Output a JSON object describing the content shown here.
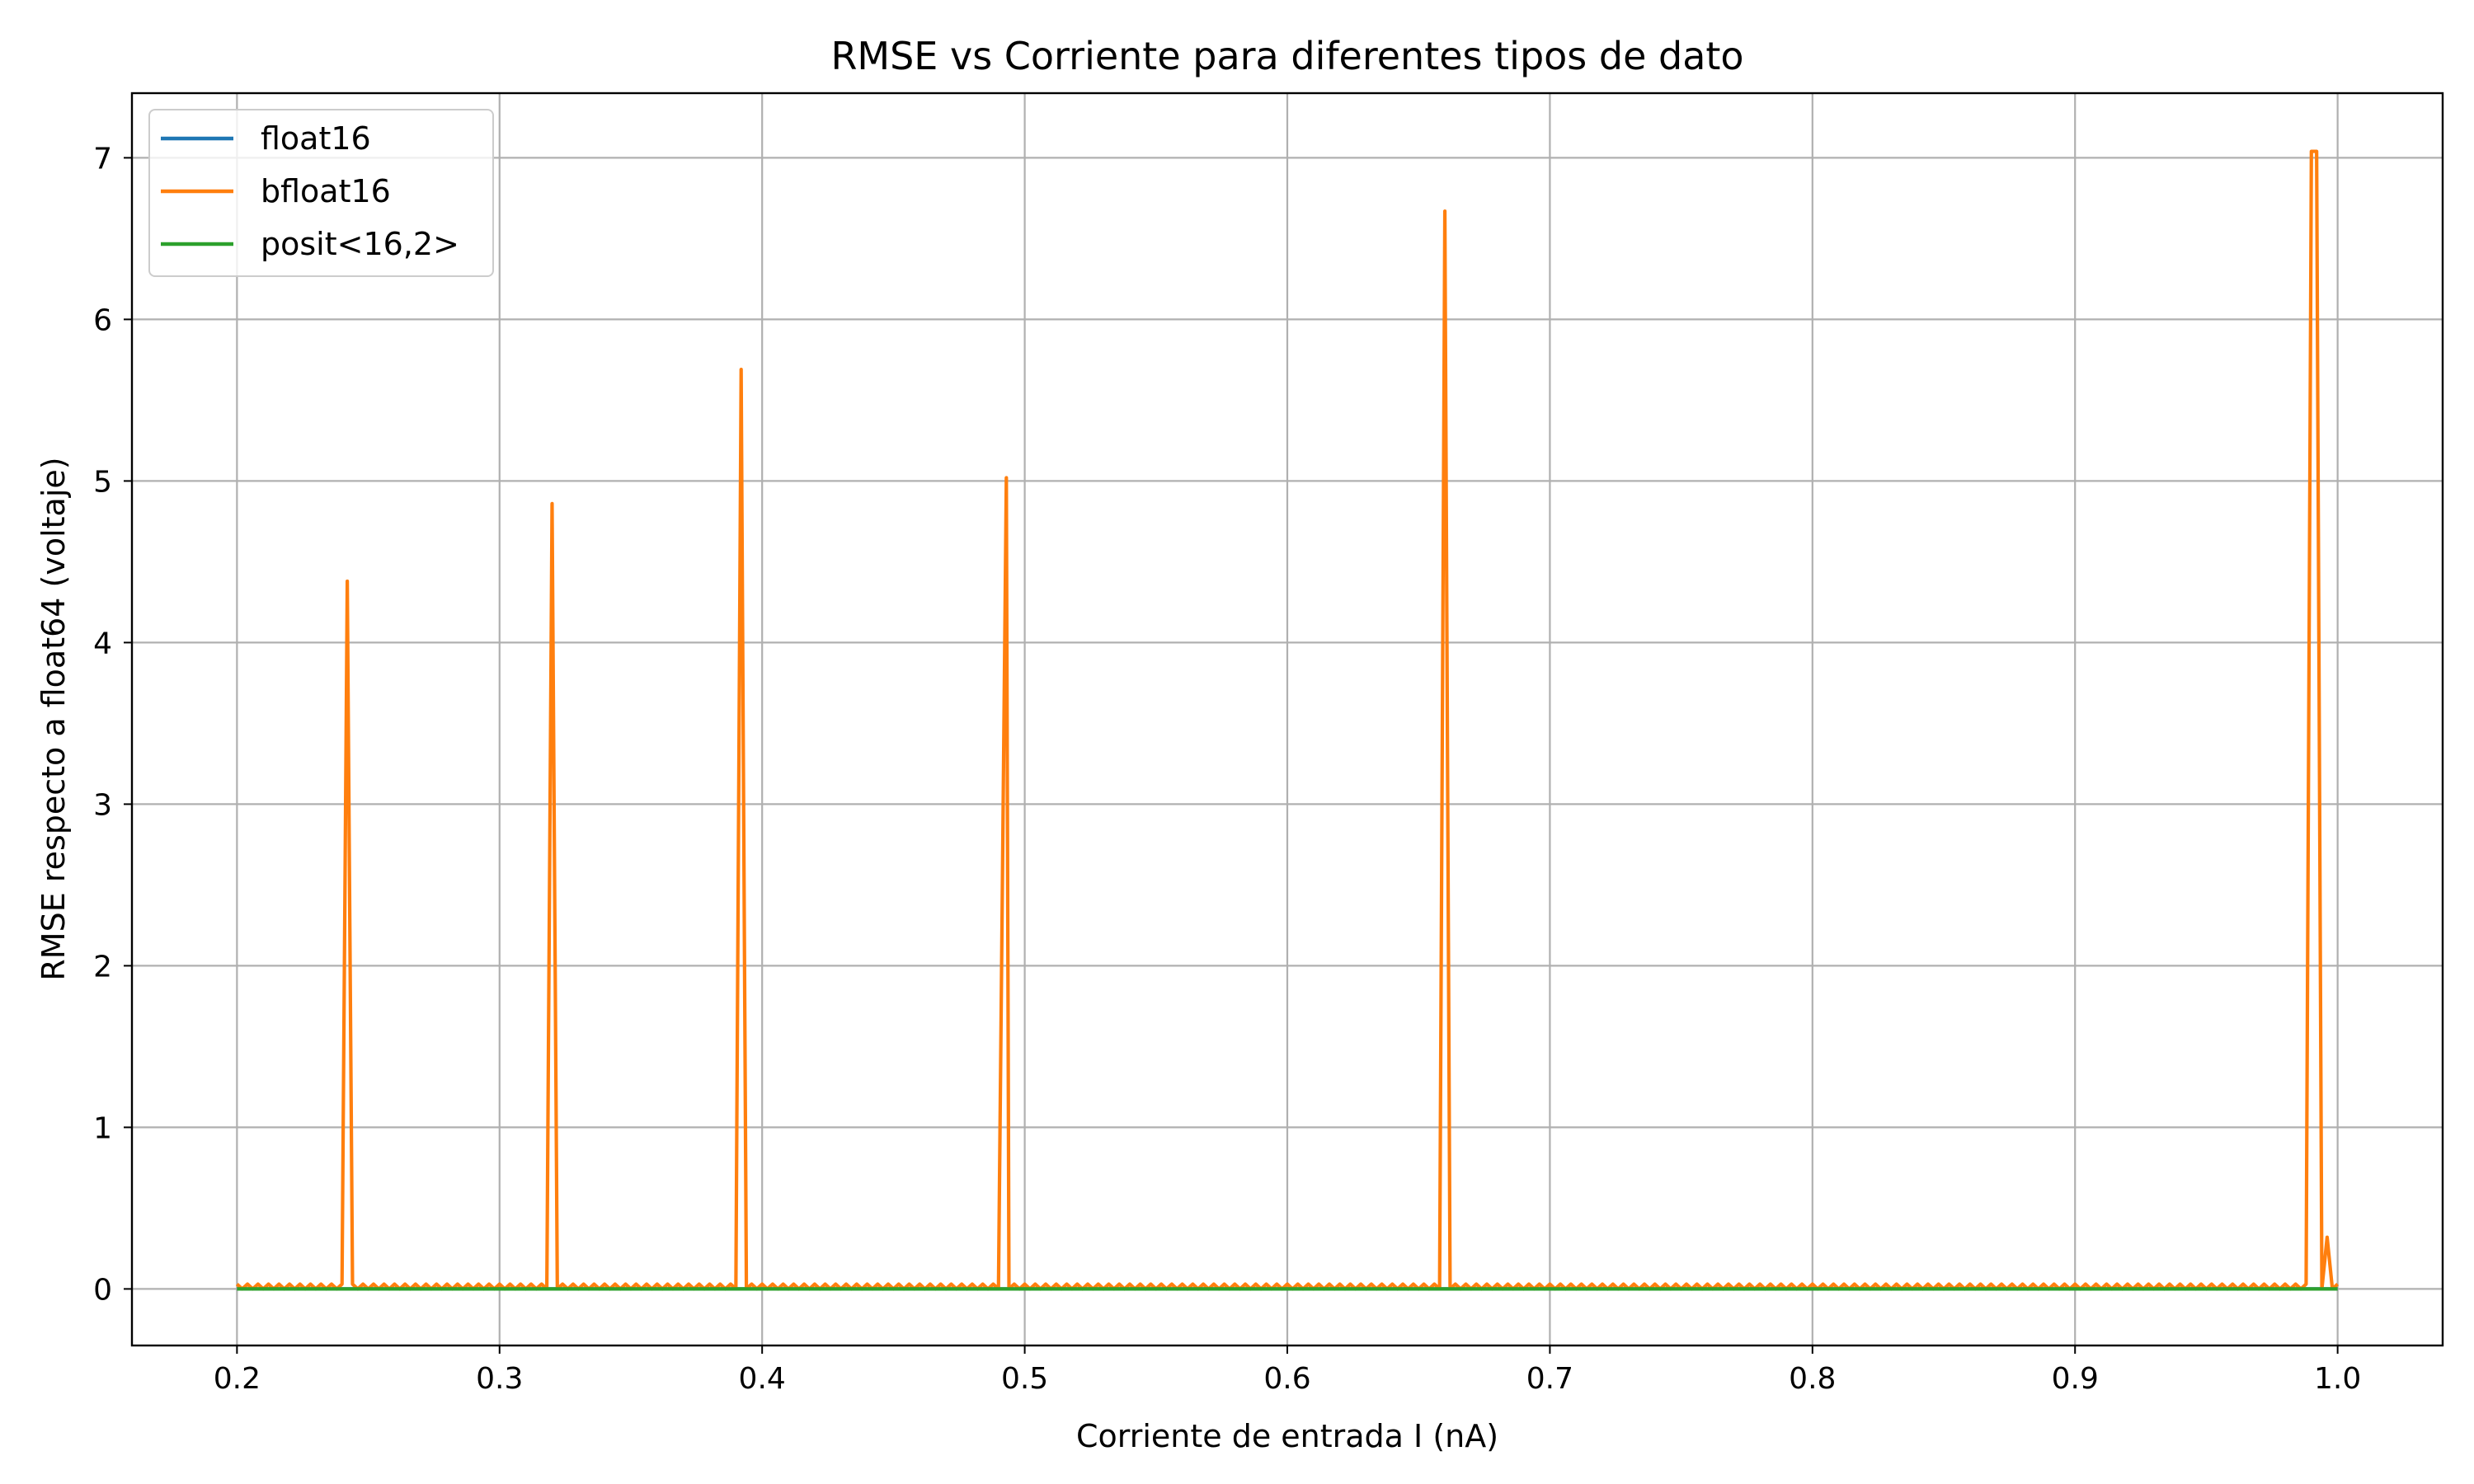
{
  "chart_data": {
    "type": "line",
    "title": "RMSE vs Corriente para diferentes tipos de dato",
    "xlabel": "Corriente de entrada I (nA)",
    "ylabel": "RMSE respecto a float64 (voltaje)",
    "xlim": [
      0.16,
      1.04
    ],
    "ylim": [
      -0.35,
      7.4
    ],
    "xticks": [
      0.2,
      0.3,
      0.4,
      0.5,
      0.6,
      0.7,
      0.8,
      0.9,
      1.0
    ],
    "xtick_labels": [
      "0.2",
      "0.3",
      "0.4",
      "0.5",
      "0.6",
      "0.7",
      "0.8",
      "0.9",
      "1.0"
    ],
    "yticks": [
      0,
      1,
      2,
      3,
      4,
      5,
      6,
      7
    ],
    "ytick_labels": [
      "0",
      "1",
      "2",
      "3",
      "4",
      "5",
      "6",
      "7"
    ],
    "grid": true,
    "legend_position": "top-left",
    "series": [
      {
        "name": "float16",
        "color": "#1f77b4",
        "x": [
          0.2,
          1.0
        ],
        "y": [
          0,
          0
        ]
      },
      {
        "name": "bfloat16",
        "color": "#ff7f0e",
        "baseline_x_range": [
          0.2,
          1.0
        ],
        "baseline_ripple": 0.03,
        "peaks": [
          {
            "x": 0.242,
            "y": 4.38
          },
          {
            "x": 0.32,
            "y": 4.86
          },
          {
            "x": 0.392,
            "y": 5.69
          },
          {
            "x": 0.493,
            "y": 5.02
          },
          {
            "x": 0.66,
            "y": 6.67
          },
          {
            "x": 0.99,
            "y": 7.04
          },
          {
            "x": 0.992,
            "y": 7.04
          },
          {
            "x": 0.996,
            "y": 0.32
          }
        ]
      },
      {
        "name": "posit<16,2>",
        "color": "#2ca02c",
        "x": [
          0.2,
          1.0
        ],
        "y": [
          0,
          0
        ]
      }
    ]
  }
}
